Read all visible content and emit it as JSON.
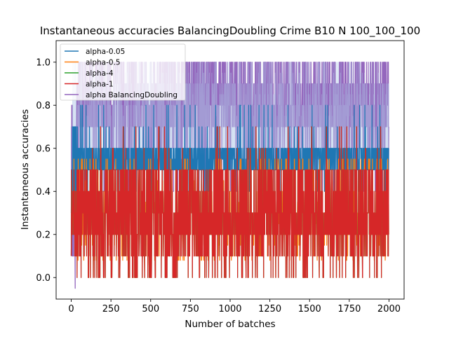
{
  "chart_data": {
    "type": "line",
    "title": "Instantaneous accuracies BalancingDoubling Crime B10 N 100_100_100",
    "xlabel": "Number of batches",
    "ylabel": "Instantaneous accuracies",
    "xlim": [
      -95,
      2095
    ],
    "ylim": [
      -0.1,
      1.1
    ],
    "xticks": [
      0,
      250,
      500,
      750,
      1000,
      1250,
      1500,
      1750,
      2000
    ],
    "yticks": [
      0.0,
      0.2,
      0.4,
      0.6,
      0.8,
      1.0
    ],
    "xtick_labels": [
      "0",
      "250",
      "500",
      "750",
      "1000",
      "1250",
      "1500",
      "1750",
      "2000"
    ],
    "ytick_labels": [
      "0.0",
      "0.2",
      "0.4",
      "0.6",
      "0.8",
      "1.0"
    ],
    "grid": false,
    "legend_position": "upper-left",
    "n_points": 2000,
    "series": [
      {
        "name": "alpha BalancingDoubling",
        "color": "#9467bd",
        "description": "oscillates mostly between 0.6 and 1.0, dipping to ~0.4 occasionally; early minimum near -0.05 at x≈25",
        "typical_range": [
          0.6,
          1.0
        ],
        "start": 0.1
      },
      {
        "name": "alpha-0.05",
        "color": "#1f77b4",
        "description": "mostly between 0.5 and 0.6, occasional dips to 0.4 and spikes to 0.8",
        "typical_range": [
          0.5,
          0.6
        ],
        "start": 0.3
      },
      {
        "name": "alpha-0.5",
        "color": "#ff7f0e",
        "description": "mostly between 0.1 and 0.5, largely hidden behind alpha-1",
        "typical_range": [
          0.1,
          0.5
        ],
        "start": 0.1
      },
      {
        "name": "alpha-4",
        "color": "#2ca02c",
        "description": "nearly identical to alpha-1, hidden behind it",
        "typical_range": [
          0.1,
          0.5
        ],
        "start": 0.1
      },
      {
        "name": "alpha-1",
        "color": "#d62728",
        "description": "oscillates between 0.1 and 0.5, frequent dips to 0.0 and spikes to 0.6-0.7",
        "typical_range": [
          0.1,
          0.5
        ],
        "start": 0.1
      }
    ],
    "legend": [
      "alpha-0.05",
      "alpha-0.5",
      "alpha-4",
      "alpha-1",
      "alpha BalancingDoubling"
    ]
  }
}
